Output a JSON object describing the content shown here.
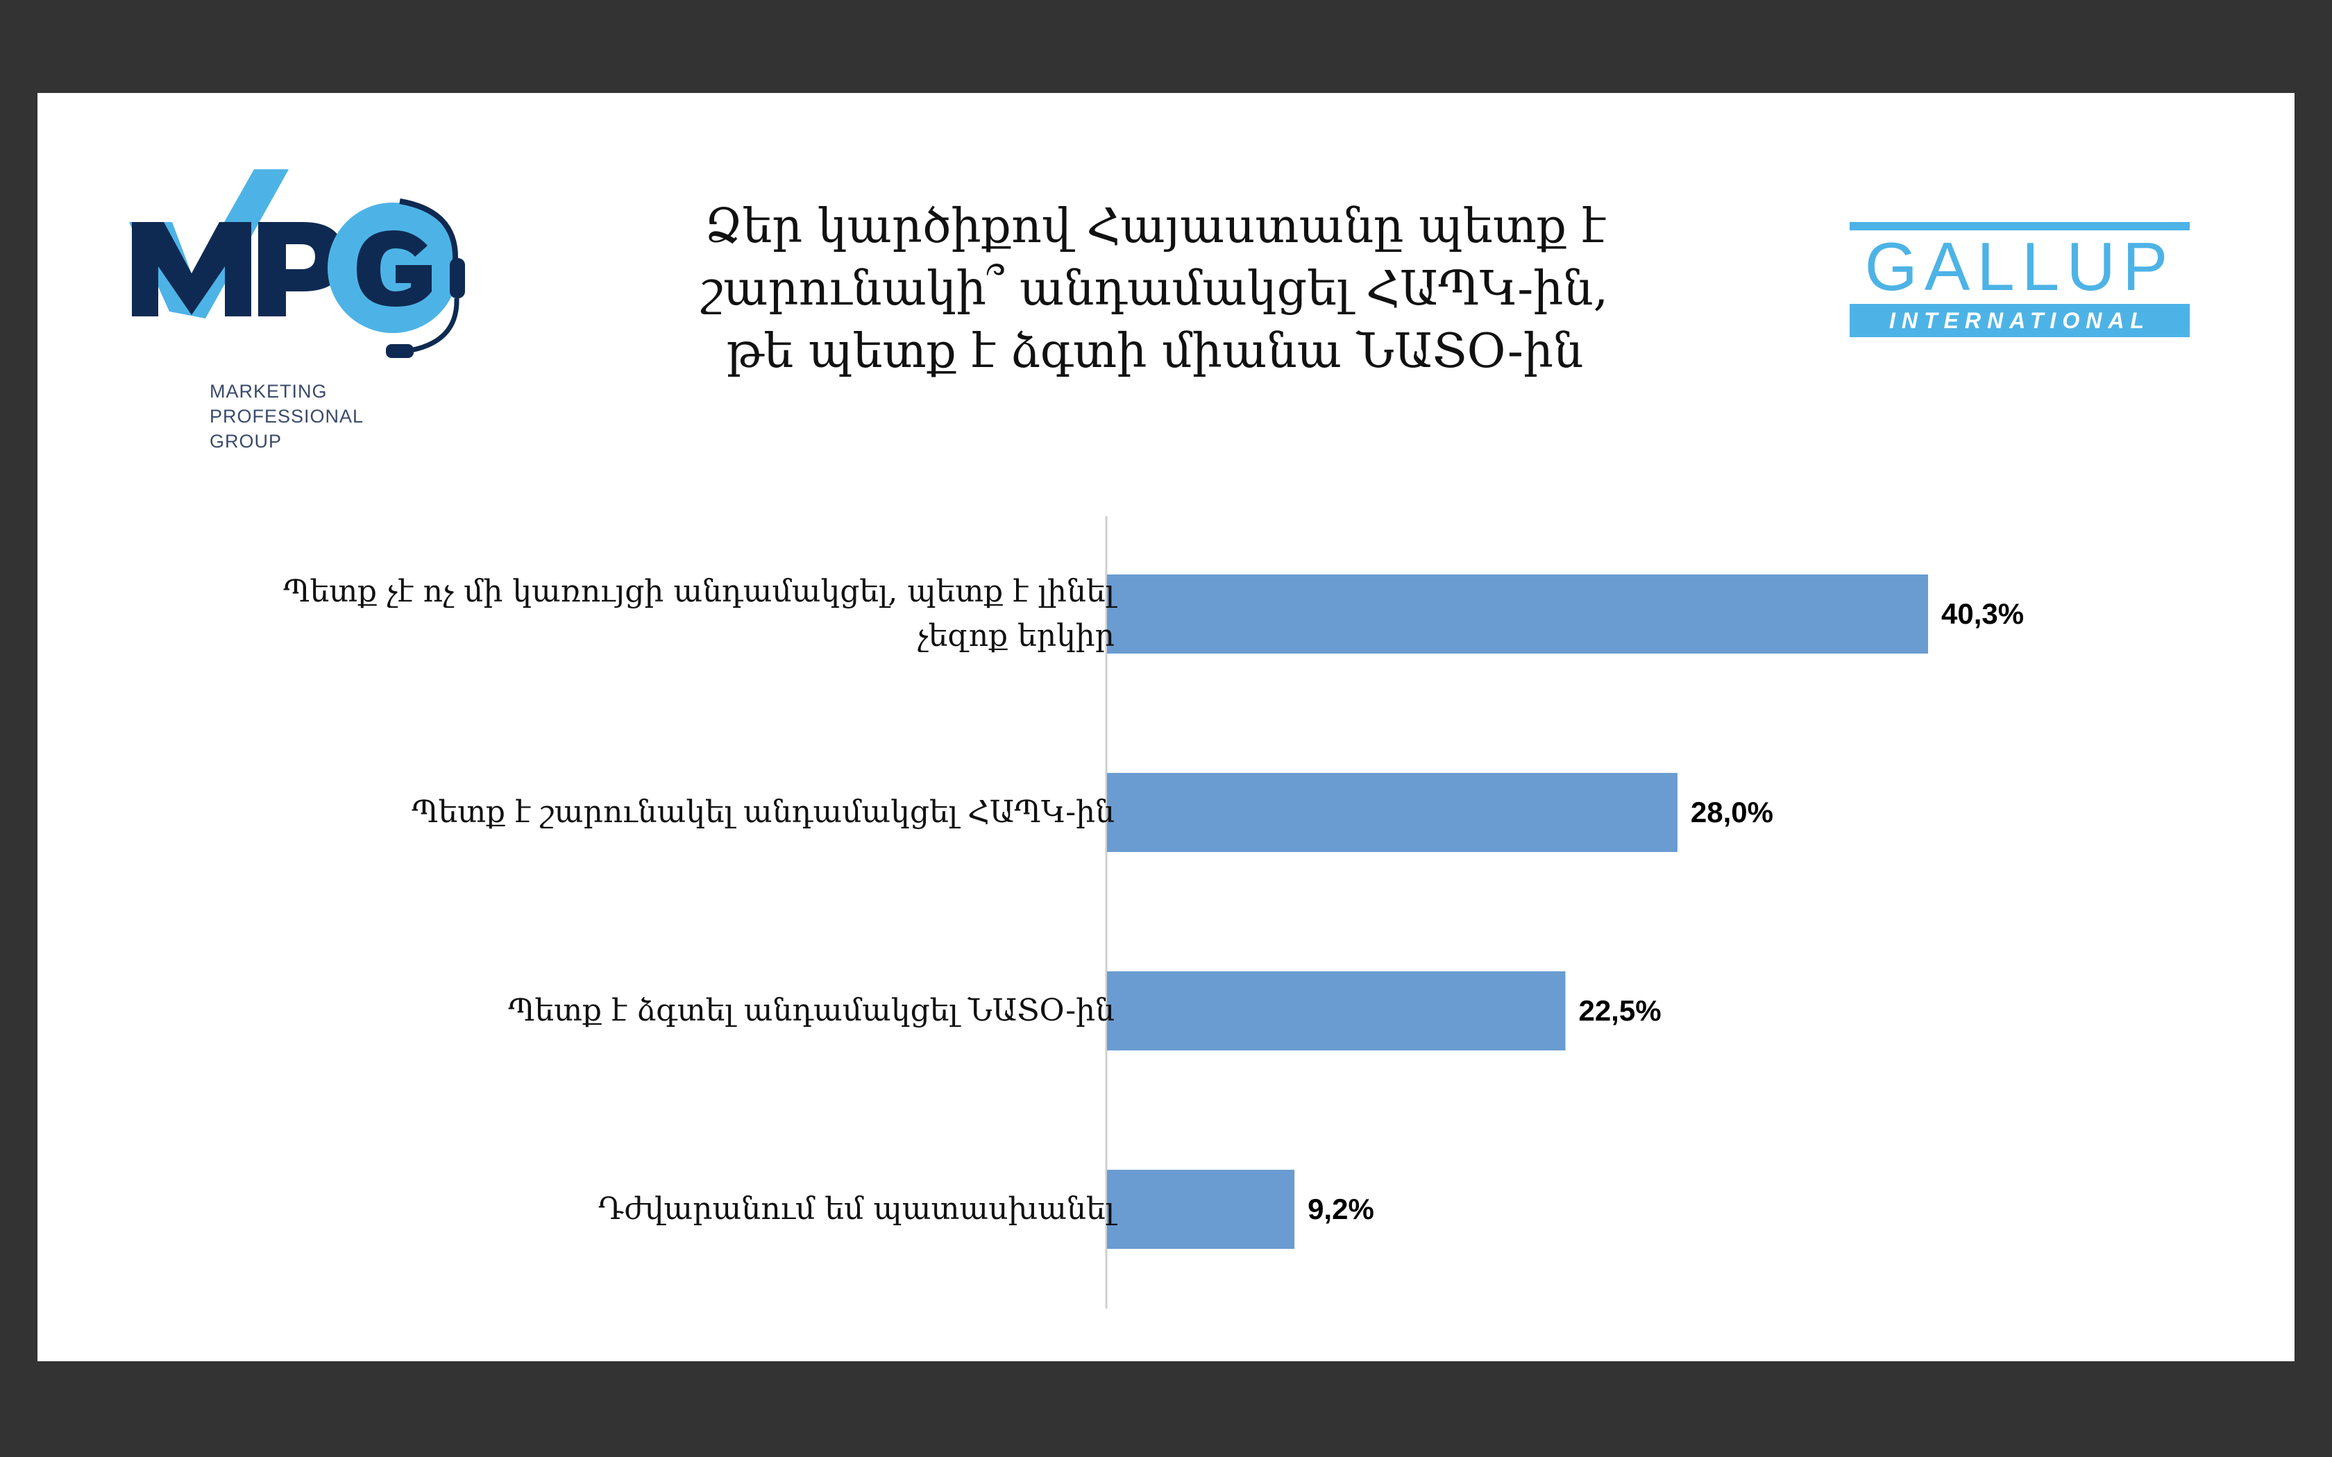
{
  "title_lines": [
    "Ձեր կարծիքով Հայաստանը պետք է",
    "շարունակի՞ անդամակցել ՀԱՊԿ-ին,",
    "թե պետք է ձգտի միանա ՆԱՏO-ին"
  ],
  "logos": {
    "mpg": {
      "lines": [
        "MARKETING",
        "PROFESSIONAL",
        "GROUP"
      ]
    },
    "gallup": {
      "word": "GALLUP",
      "sub": "INTERNATIONAL"
    }
  },
  "colors": {
    "bar": "#6a9cd1",
    "frame": "#333333",
    "mpg_navy": "#0f2a52",
    "mpg_blue": "#4db3e6",
    "gallup_blue": "#4db3e6"
  },
  "chart_data": {
    "type": "bar",
    "orientation": "horizontal",
    "categories": [
      [
        "Պետք չէ ոչ մի կառույցի անդամակցել, պետք է լինել",
        "չեզոք երկիր"
      ],
      [
        "Պետք է շարունակել անդամակցել ՀԱՊԿ-ին"
      ],
      [
        "Պետք է ձգտել անդամակցել ՆԱՏO-ին"
      ],
      [
        "Դժվարանում եմ պատասխանել"
      ]
    ],
    "values": [
      40.3,
      28.0,
      22.5,
      9.2
    ],
    "value_labels": [
      "40,3%",
      "28,0%",
      "22,5%",
      "9,2%"
    ],
    "xlim": [
      0,
      45
    ],
    "grid": false,
    "legend": "none"
  }
}
